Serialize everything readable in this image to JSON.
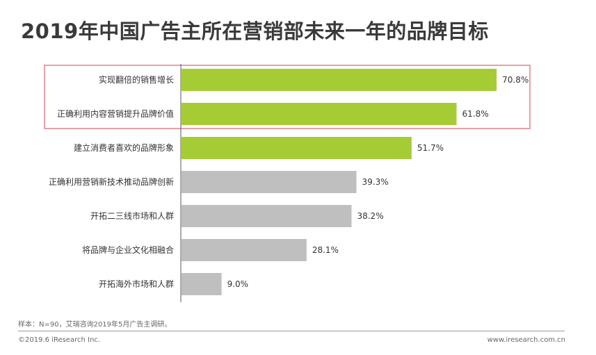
{
  "title": "2019年中国广告主所在营销部未来一年的品牌目标",
  "chart_data": {
    "type": "bar",
    "orientation": "horizontal",
    "categories": [
      "实现翻倍的销售增长",
      "正确利用内容营销提升品牌价值",
      "建立消费者喜欢的品牌形象",
      "正确利用营销新技术推动品牌创新",
      "开拓二三线市场和人群",
      "将品牌与企业文化相融合",
      "开拓海外市场和人群"
    ],
    "values": [
      70.8,
      61.8,
      51.7,
      39.3,
      38.2,
      28.1,
      9.0
    ],
    "value_labels": [
      "70.8%",
      "61.8%",
      "51.7%",
      "39.3%",
      "38.2%",
      "28.1%",
      "9.0%"
    ],
    "highlighted": [
      true,
      true,
      true,
      false,
      false,
      false,
      false
    ],
    "boxed": [
      true,
      true,
      false,
      false,
      false,
      false,
      false
    ],
    "xlim": [
      0,
      100
    ],
    "grid": false,
    "colors": {
      "highlight": "#a6cc35",
      "normal": "#bfbfbf",
      "box": "#e8a0a6",
      "axis": "#555555"
    }
  },
  "footnote": "样本：N=90，艾瑞咨询2019年5月广告主调研。",
  "copyright": "©2019.6 iResearch Inc.",
  "website": "www.iresearch.com.cn"
}
